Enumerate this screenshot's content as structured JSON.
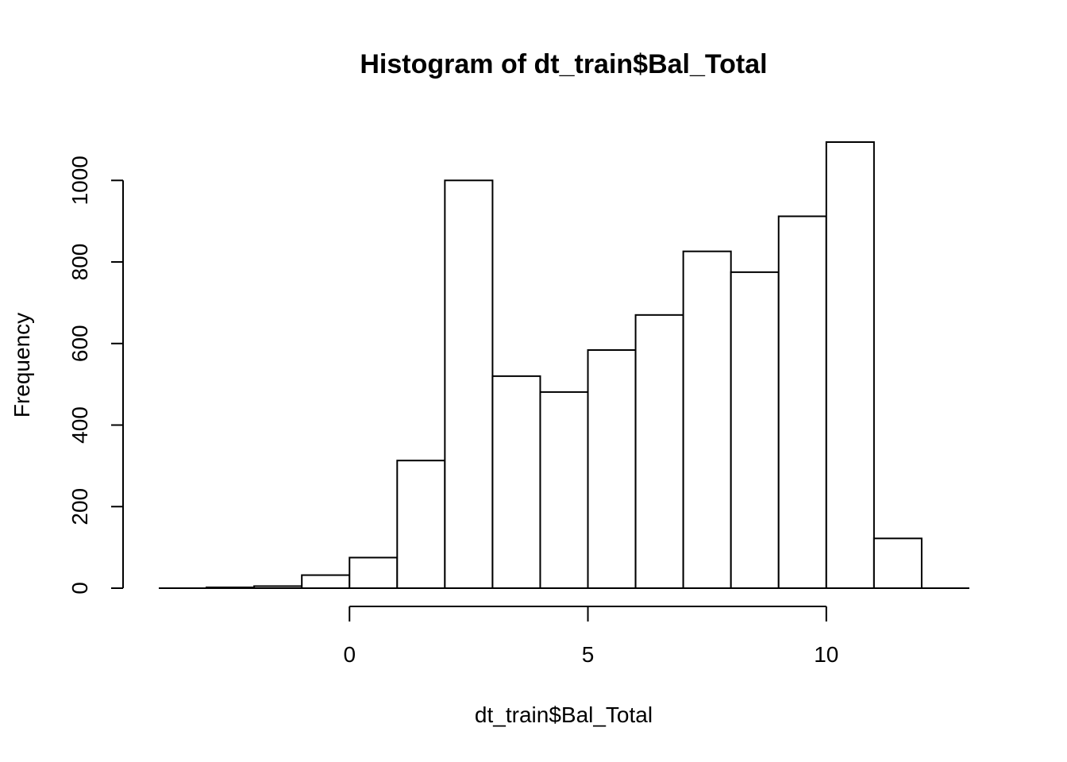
{
  "chart_data": {
    "type": "bar",
    "title": "Histogram of dt_train$Bal_Total",
    "xlabel": "dt_train$Bal_Total",
    "ylabel": "Frequency",
    "bin_edges": [
      -4,
      -3,
      -2,
      -1,
      0,
      1,
      2,
      3,
      4,
      5,
      6,
      7,
      8,
      9,
      10,
      11,
      12
    ],
    "values": [
      0,
      2,
      5,
      32,
      75,
      313,
      1000,
      520,
      481,
      584,
      670,
      826,
      775,
      912,
      1094,
      122
    ],
    "xlim": [
      -4,
      13
    ],
    "ylim": [
      0,
      1094
    ],
    "x_ticks": [
      0,
      5,
      10
    ],
    "x_tick_labels": [
      "0",
      "5",
      "10"
    ],
    "y_ticks": [
      0,
      200,
      400,
      600,
      800,
      1000
    ],
    "y_tick_labels": [
      "0",
      "200",
      "400",
      "600",
      "800",
      "1000"
    ],
    "bar_fill": "#ffffff",
    "bar_stroke": "#000000",
    "grid": false,
    "legend": "none"
  }
}
